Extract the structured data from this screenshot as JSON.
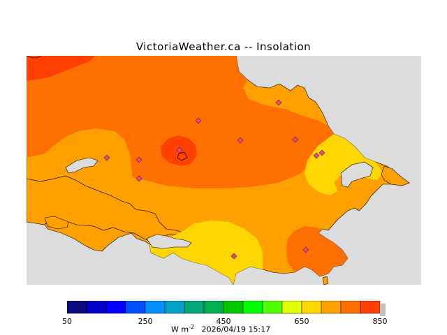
{
  "title": "VictoriaWeather.ca -- Insolation",
  "colorbar": {
    "min": 50,
    "max": 850,
    "step": 50,
    "tick_labels": [
      "50",
      "250",
      "450",
      "650",
      "850"
    ],
    "tick_values": [
      50,
      250,
      450,
      650,
      850
    ],
    "units_base": "W m",
    "units_exp": "-2",
    "timestamp": "2026/04/19 15:17",
    "colors": [
      "#0a0a80",
      "#0000c8",
      "#0000ff",
      "#0050ff",
      "#0090ff",
      "#00a0c8",
      "#00a878",
      "#00b050",
      "#00c800",
      "#00ff00",
      "#50ff00",
      "#e0ff00",
      "#ffd700",
      "#ffa000",
      "#ff7000",
      "#ff4000",
      "#ff0000"
    ]
  },
  "map": {
    "background": "#dcdcdc",
    "station_count": 11,
    "colors": {
      "land_600_650": "#ffa000",
      "land_650_700": "#ff7000",
      "land_700_750": "#ff4000",
      "land_550_600": "#ffd700"
    }
  }
}
